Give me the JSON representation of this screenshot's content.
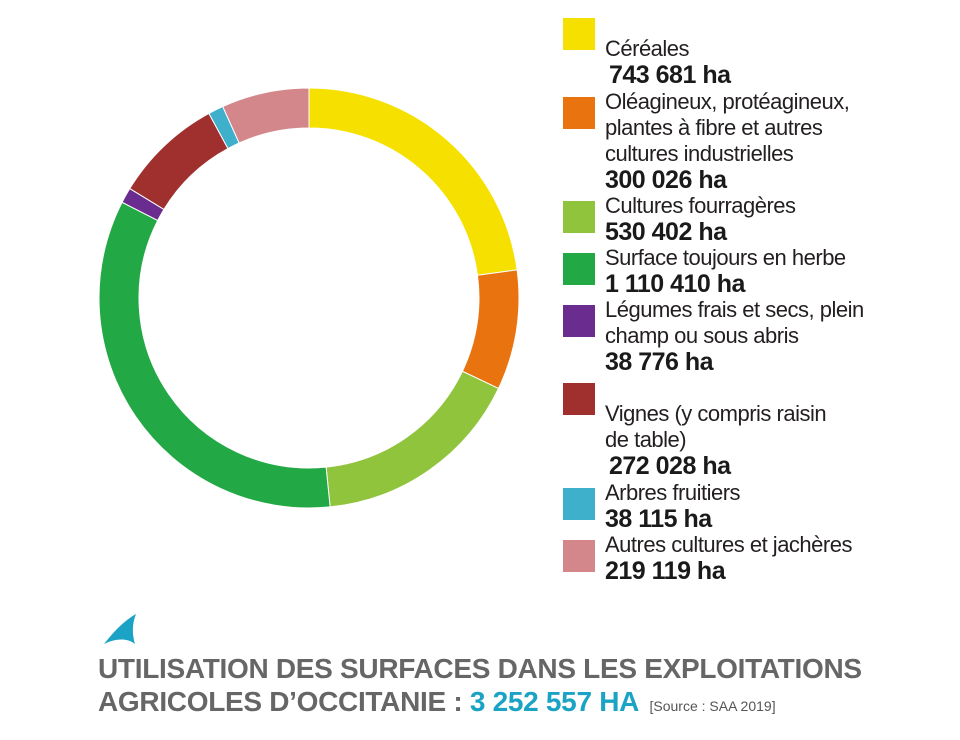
{
  "chart_data": {
    "type": "pie",
    "title": "UTILISATION DES SURFACES DANS LES EXPLOITATIONS AGRICOLES D’OCCITANIE :",
    "total_label": "3 252 557 HA",
    "source": "[Source : SAA 2019]",
    "unit": "ha",
    "series": [
      {
        "name": "Céréales",
        "value": 743681,
        "value_label": "743 681 ha",
        "color": "#f6e000"
      },
      {
        "name": "Oléagineux, protéagineux,\nplantes à fibre et autres\ncultures industrielles",
        "value": 300026,
        "value_label": "300 026 ha",
        "color": "#e8730f"
      },
      {
        "name": "Cultures fourragères",
        "value": 530402,
        "value_label": "530 402 ha",
        "color": "#8fc43c"
      },
      {
        "name": "Surface toujours en herbe",
        "value": 1110410,
        "value_label": "1 110 410 ha",
        "color": "#22a845"
      },
      {
        "name": "Légumes frais et secs, plein\nchamp ou sous abris",
        "value": 38776,
        "value_label": "38 776 ha",
        "color": "#6a2c8e"
      },
      {
        "name": "Vignes (y compris raisin\nde table)",
        "value": 272028,
        "value_label": "272 028 ha",
        "color": "#a0302e"
      },
      {
        "name": "Arbres fruitiers",
        "value": 38115,
        "value_label": "38 115 ha",
        "color": "#3fb0cc"
      },
      {
        "name": "Autres cultures et jachères",
        "value": 219119,
        "value_label": "219 119 ha",
        "color": "#d3878b"
      }
    ]
  },
  "footer": {
    "logo": "arrow-logo-icon",
    "logo_color": "#1aa3c4"
  }
}
